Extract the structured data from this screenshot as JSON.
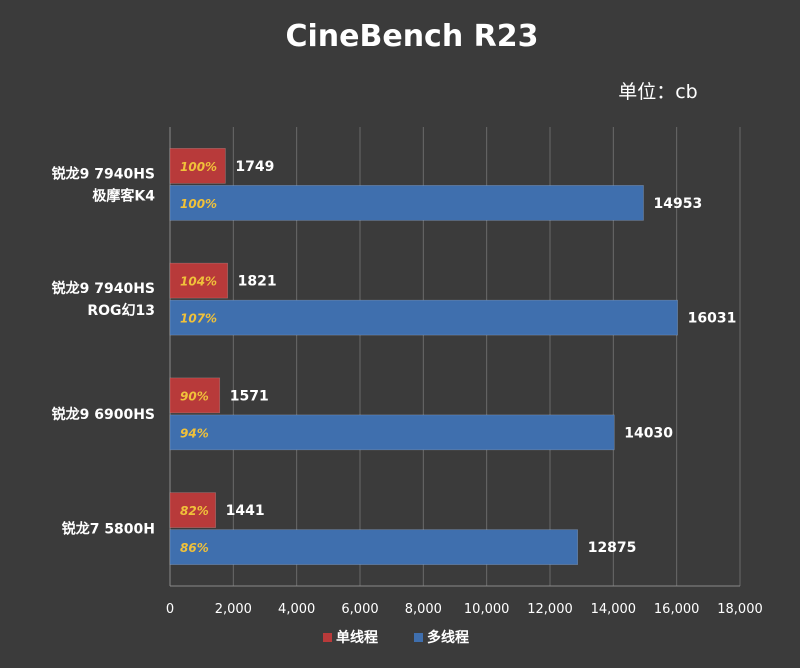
{
  "chart_data": {
    "type": "bar",
    "orientation": "horizontal",
    "title": "CineBench R23",
    "unit_label": "单位：cb",
    "categories": [
      [
        "锐龙9 7940HS",
        "极摩客K4"
      ],
      [
        "锐龙9 7940HS",
        "ROG幻13"
      ],
      [
        "锐龙9 6900HS"
      ],
      [
        "锐龙7 5800H"
      ]
    ],
    "series": [
      {
        "name": "单线程",
        "color": "#b83a3a",
        "pct_color": "#f0c13a",
        "values": [
          1749,
          1821,
          1571,
          1441
        ],
        "pct_labels": [
          "100%",
          "104%",
          "90%",
          "82%"
        ]
      },
      {
        "name": "多线程",
        "color": "#3f6fae",
        "pct_color": "#f0c13a",
        "values": [
          14953,
          16031,
          14030,
          12875
        ],
        "pct_labels": [
          "100%",
          "107%",
          "94%",
          "86%"
        ]
      }
    ],
    "xlim": [
      0,
      18000
    ],
    "xticks": [
      0,
      2000,
      4000,
      6000,
      8000,
      10000,
      12000,
      14000,
      16000,
      18000
    ],
    "xtick_labels": [
      "0",
      "2,000",
      "4,000",
      "6,000",
      "8,000",
      "10,000",
      "12,000",
      "14,000",
      "16,000",
      "18,000"
    ],
    "grid": true,
    "legend_position": "bottom-center"
  }
}
